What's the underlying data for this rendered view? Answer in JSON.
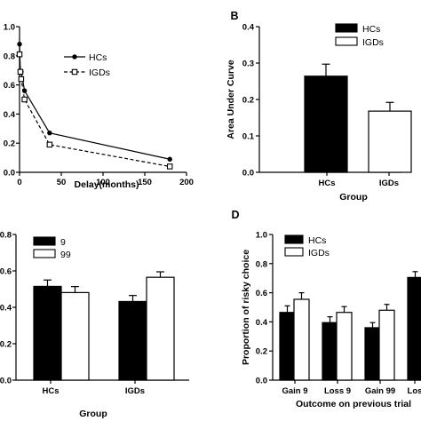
{
  "chart_data": [
    {
      "type": "line",
      "panel_letter": "",
      "xlabel": "Delay(months)",
      "ylabel": "",
      "xlim": [
        0,
        200
      ],
      "ylim": [
        0,
        1.0
      ],
      "x_ticks": [
        "0",
        "50",
        "100",
        "150",
        "200"
      ],
      "y_ticks": [
        "0.0",
        "0.2",
        "0.4",
        "0.6",
        "0.8",
        "1.0"
      ],
      "legend_position": "top-right",
      "series": [
        {
          "name": "HCs",
          "marker": "filled-circle",
          "line": "solid",
          "x": [
            0,
            1,
            2,
            6,
            36,
            180
          ],
          "y": [
            0.88,
            0.69,
            0.69,
            0.56,
            0.27,
            0.09
          ]
        },
        {
          "name": "IGDs",
          "marker": "open-square",
          "line": "dashed",
          "x": [
            0,
            1,
            2,
            6,
            36,
            180
          ],
          "y": [
            0.81,
            0.69,
            0.64,
            0.5,
            0.19,
            0.04
          ]
        }
      ]
    },
    {
      "type": "bar",
      "panel_letter": "B",
      "ylabel": "Area Under Curve",
      "xlabel": "Group",
      "categories": [
        "HCs",
        "IGDs"
      ],
      "ylim": [
        0,
        0.4
      ],
      "y_ticks": [
        "0.0",
        "0.1",
        "0.2",
        "0.3",
        "0.4"
      ],
      "legend_position": "top-right",
      "series": [
        {
          "name": "HCs",
          "fill": "#000000",
          "values": [
            0.264,
            null
          ],
          "errors": [
            0.033,
            null
          ]
        },
        {
          "name": "IGDs",
          "fill": "#ffffff",
          "values": [
            null,
            0.168
          ],
          "errors": [
            null,
            0.024
          ]
        }
      ]
    },
    {
      "type": "bar",
      "panel_letter": "",
      "ylabel": "",
      "xlabel": "Group",
      "categories": [
        "HCs",
        "IGDs"
      ],
      "ylim": [
        0,
        0.8
      ],
      "y_ticks": [
        "0.0",
        "0.2",
        "0.4",
        "0.6",
        "0.8"
      ],
      "legend_position": "top-left",
      "series": [
        {
          "name": "9",
          "fill": "#000000",
          "values": [
            0.515,
            0.432
          ],
          "errors": [
            0.035,
            0.033
          ]
        },
        {
          "name": "99",
          "fill": "#ffffff",
          "values": [
            0.481,
            0.565
          ],
          "errors": [
            0.033,
            0.03
          ]
        }
      ]
    },
    {
      "type": "bar",
      "panel_letter": "D",
      "ylabel": "Proportion of risky choice",
      "xlabel": "Outcome on previous trial",
      "categories": [
        "Gain 9",
        "Loss 9",
        "Gain 99",
        "Los"
      ],
      "ylim": [
        0,
        1.0
      ],
      "y_ticks": [
        "0.0",
        "0.2",
        "0.4",
        "0.6",
        "0.8",
        "1.0"
      ],
      "legend_position": "top-left",
      "series": [
        {
          "name": "HCs",
          "fill": "#000000",
          "values": [
            0.465,
            0.395,
            0.36,
            0.705
          ],
          "errors": [
            0.045,
            0.04,
            0.035,
            0.04
          ]
        },
        {
          "name": "IGDs",
          "fill": "#ffffff",
          "values": [
            0.555,
            0.465,
            0.48,
            null
          ],
          "errors": [
            0.045,
            0.04,
            0.04,
            null
          ]
        }
      ]
    }
  ]
}
